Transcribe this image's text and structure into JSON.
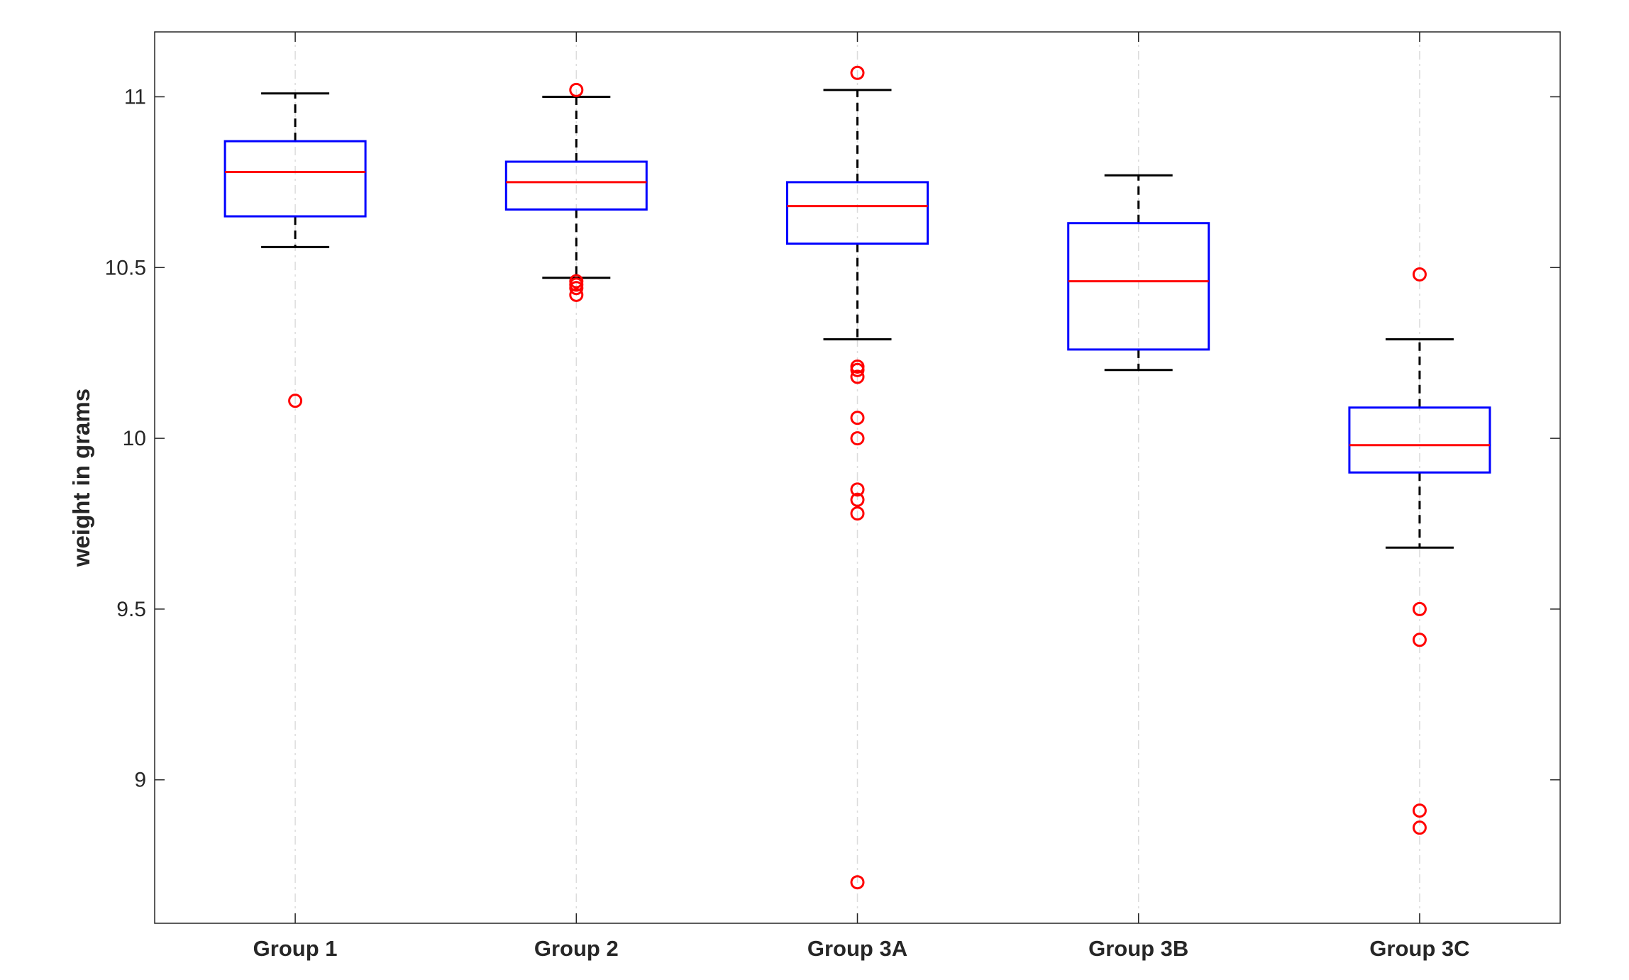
{
  "chart_data": {
    "type": "box",
    "title": "",
    "xlabel": "",
    "ylabel": "weight in grams",
    "ylim": [
      8.58,
      11.19
    ],
    "yticks": [
      9,
      9.5,
      10,
      10.5,
      11
    ],
    "ytick_labels": [
      "9",
      "9.5",
      "10",
      "10.5",
      "11"
    ],
    "grid": "vertical dashed at categories",
    "colors": {
      "box": "#0000ff",
      "median": "#ff0000",
      "whisker": "#000000",
      "outlier": "#ff0000",
      "grid": "#dcdcdc",
      "axis": "#262626"
    },
    "categories": [
      "Group 1",
      "Group 2",
      "Group 3A",
      "Group 3B",
      "Group 3C"
    ],
    "boxes": [
      {
        "name": "Group 1",
        "whisker_low": 10.56,
        "q1": 10.65,
        "median": 10.78,
        "q3": 10.87,
        "whisker_high": 11.01,
        "outliers": [
          10.11
        ]
      },
      {
        "name": "Group 2",
        "whisker_low": 10.47,
        "q1": 10.67,
        "median": 10.75,
        "q3": 10.81,
        "whisker_high": 11.0,
        "outliers": [
          11.02,
          10.46,
          10.45,
          10.44,
          10.42
        ]
      },
      {
        "name": "Group 3A",
        "whisker_low": 10.29,
        "q1": 10.57,
        "median": 10.68,
        "q3": 10.75,
        "whisker_high": 11.02,
        "outliers": [
          11.07,
          10.21,
          10.2,
          10.18,
          10.06,
          10.0,
          9.85,
          9.82,
          9.78,
          8.7
        ]
      },
      {
        "name": "Group 3B",
        "whisker_low": 10.2,
        "q1": 10.26,
        "median": 10.46,
        "q3": 10.63,
        "whisker_high": 10.77,
        "outliers": []
      },
      {
        "name": "Group 3C",
        "whisker_low": 9.68,
        "q1": 9.9,
        "median": 9.98,
        "q3": 10.09,
        "whisker_high": 10.29,
        "outliers": [
          10.48,
          9.5,
          9.41,
          8.91,
          8.86
        ]
      }
    ]
  }
}
